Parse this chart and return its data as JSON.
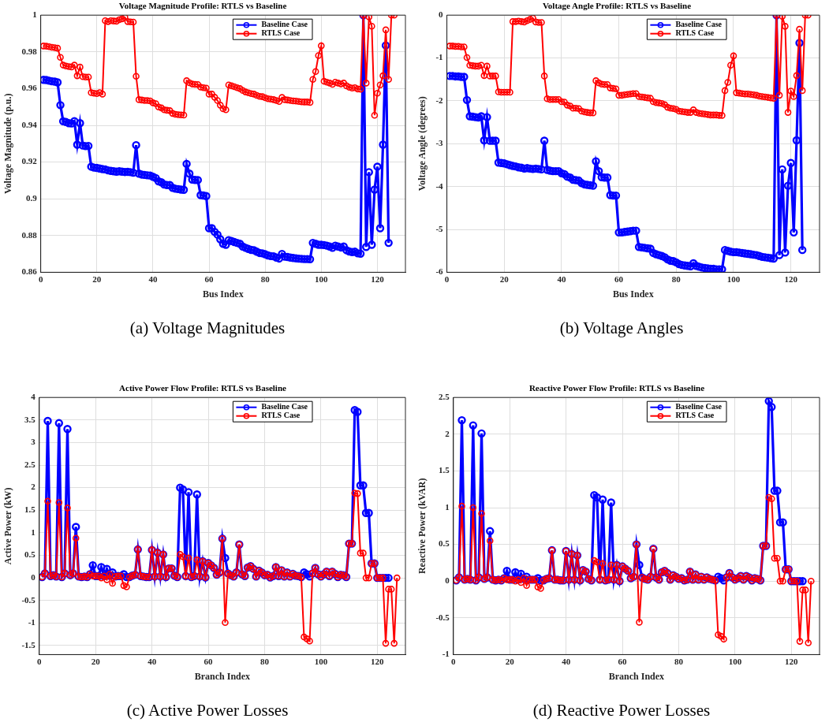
{
  "chart_data": [
    {
      "type": "line",
      "title": "Voltage Magnitude Profile: RTLS vs Baseline",
      "xlabel": "Bus Index",
      "ylabel": "Voltage Magnitude (p.u.)",
      "annotations": [
        "(a) Voltage Magnitudes"
      ],
      "xlim": [
        0,
        130
      ],
      "xticks": [
        0,
        20,
        40,
        60,
        80,
        100,
        120
      ],
      "ylim": [
        0.86,
        1
      ],
      "yticks": [
        0.86,
        0.88,
        0.9,
        0.92,
        0.94,
        0.96,
        0.98,
        1
      ],
      "grid": true,
      "legend": "top right",
      "marker": "circle",
      "x": [
        1,
        2,
        3,
        4,
        5,
        6,
        7,
        8,
        9,
        10,
        11,
        12,
        13,
        14,
        15,
        16,
        17,
        18,
        19,
        20,
        21,
        22,
        23,
        24,
        25,
        26,
        27,
        28,
        29,
        30,
        31,
        32,
        33,
        34,
        35,
        36,
        37,
        38,
        39,
        40,
        41,
        42,
        43,
        44,
        45,
        46,
        47,
        48,
        49,
        50,
        51,
        52,
        53,
        54,
        55,
        56,
        57,
        58,
        59,
        60,
        61,
        62,
        63,
        64,
        65,
        66,
        67,
        68,
        69,
        70,
        71,
        72,
        73,
        74,
        75,
        76,
        77,
        78,
        79,
        80,
        81,
        82,
        83,
        84,
        85,
        86,
        87,
        88,
        89,
        90,
        91,
        92,
        93,
        94,
        95,
        96,
        97,
        98,
        99,
        100,
        101,
        102,
        103,
        104,
        105,
        106,
        107,
        108,
        109,
        110,
        111,
        112,
        113,
        114,
        115,
        116,
        117,
        118,
        119,
        120,
        121,
        122,
        123,
        124,
        125,
        126
      ],
      "series": [
        {
          "name": "Baseline Case",
          "color": "#0000ff",
          "values": [
            0.9648,
            0.9647,
            0.9643,
            0.964,
            0.9638,
            0.9634,
            0.951,
            0.9422,
            0.9418,
            0.9412,
            0.941,
            0.9423,
            0.9295,
            0.9412,
            0.929,
            0.9287,
            0.9288,
            0.9175,
            0.917,
            0.9168,
            0.9165,
            0.9162,
            0.916,
            0.9155,
            0.9152,
            0.915,
            0.9148,
            0.915,
            0.9148,
            0.9146,
            0.9147,
            0.9145,
            0.9142,
            0.9292,
            0.9137,
            0.9132,
            0.913,
            0.9128,
            0.9127,
            0.912,
            0.9113,
            0.9095,
            0.909,
            0.9078,
            0.9075,
            0.9075,
            0.906,
            0.9055,
            0.9053,
            0.905,
            0.9049,
            0.919,
            0.9137,
            0.9105,
            0.9103,
            0.9102,
            0.902,
            0.9018,
            0.9015,
            0.884,
            0.884,
            0.882,
            0.8805,
            0.878,
            0.8755,
            0.875,
            0.8775,
            0.877,
            0.8765,
            0.876,
            0.8755,
            0.874,
            0.8733,
            0.8727,
            0.8722,
            0.872,
            0.8712,
            0.8705,
            0.8703,
            0.8698,
            0.8692,
            0.8688,
            0.8687,
            0.868,
            0.8675,
            0.87,
            0.8685,
            0.8683,
            0.868,
            0.8678,
            0.8676,
            0.8674,
            0.8673,
            0.8672,
            0.8672,
            0.8671,
            0.876,
            0.8755,
            0.875,
            0.875,
            0.8748,
            0.8745,
            0.874,
            0.8733,
            0.8745,
            0.874,
            0.8735,
            0.874,
            0.872,
            0.8713,
            0.871,
            0.8712,
            0.8703,
            0.8701,
            1.0,
            0.8738,
            0.9145,
            0.875,
            0.905,
            0.9175,
            0.884,
            0.9295,
            0.9835,
            0.876,
            null,
            null
          ]
        },
        {
          "name": "RTLS Case",
          "color": "#ff0000",
          "values": [
            0.9832,
            0.9831,
            0.9828,
            0.9825,
            0.9823,
            0.982,
            0.977,
            0.9728,
            0.9723,
            0.972,
            0.9718,
            0.9728,
            0.967,
            0.9717,
            0.9665,
            0.9663,
            0.9663,
            0.9578,
            0.9575,
            0.9573,
            0.9578,
            0.957,
            0.997,
            0.9965,
            0.997,
            0.9968,
            0.9967,
            0.9975,
            0.998,
            0.9988,
            0.9965,
            0.9963,
            0.9962,
            0.9667,
            0.954,
            0.9538,
            0.9535,
            0.9535,
            0.9533,
            0.9523,
            0.9518,
            0.95,
            0.9495,
            0.9485,
            0.9482,
            0.948,
            0.9465,
            0.946,
            0.9458,
            0.9457,
            0.9456,
            0.9643,
            0.9632,
            0.9625,
            0.9623,
            0.9622,
            0.9608,
            0.9605,
            0.9603,
            0.957,
            0.957,
            0.9553,
            0.9535,
            0.951,
            0.949,
            0.9485,
            0.962,
            0.9615,
            0.961,
            0.9605,
            0.96,
            0.959,
            0.9582,
            0.9577,
            0.9573,
            0.957,
            0.9563,
            0.9558,
            0.9556,
            0.955,
            0.9545,
            0.9543,
            0.954,
            0.9535,
            0.953,
            0.9552,
            0.954,
            0.9538,
            0.9535,
            0.9533,
            0.9532,
            0.953,
            0.9528,
            0.9527,
            0.9527,
            0.9525,
            0.965,
            0.9693,
            0.978,
            0.9833,
            0.964,
            0.9635,
            0.963,
            0.9623,
            0.9635,
            0.963,
            0.9625,
            0.963,
            0.9615,
            0.9607,
            0.9603,
            0.9605,
            0.9598,
            0.9597,
            1.0,
            0.963,
            0.999,
            0.994,
            0.9455,
            0.9575,
            0.962,
            0.967,
            0.992,
            0.965,
            1.0,
            1.0
          ]
        }
      ]
    },
    {
      "type": "line",
      "title": "Voltage Angle Profile: RTLS vs Baseline",
      "xlabel": "Bus Index",
      "ylabel": "Voltage Angle (degrees)",
      "annotations": [
        "(b) Voltage Angles"
      ],
      "xlim": [
        0,
        130
      ],
      "xticks": [
        0,
        20,
        40,
        60,
        80,
        100,
        120
      ],
      "ylim": [
        -6,
        0
      ],
      "yticks": [
        -6,
        -5,
        -4,
        -3,
        -2,
        -1,
        0
      ],
      "grid": true,
      "legend": "top right",
      "marker": "circle",
      "x": [
        1,
        2,
        3,
        4,
        5,
        6,
        7,
        8,
        9,
        10,
        11,
        12,
        13,
        14,
        15,
        16,
        17,
        18,
        19,
        20,
        21,
        22,
        23,
        24,
        25,
        26,
        27,
        28,
        29,
        30,
        31,
        32,
        33,
        34,
        35,
        36,
        37,
        38,
        39,
        40,
        41,
        42,
        43,
        44,
        45,
        46,
        47,
        48,
        49,
        50,
        51,
        52,
        53,
        54,
        55,
        56,
        57,
        58,
        59,
        60,
        61,
        62,
        63,
        64,
        65,
        66,
        67,
        68,
        69,
        70,
        71,
        72,
        73,
        74,
        75,
        76,
        77,
        78,
        79,
        80,
        81,
        82,
        83,
        84,
        85,
        86,
        87,
        88,
        89,
        90,
        91,
        92,
        93,
        94,
        95,
        96,
        97,
        98,
        99,
        100,
        101,
        102,
        103,
        104,
        105,
        106,
        107,
        108,
        109,
        110,
        111,
        112,
        113,
        114,
        115,
        116,
        117,
        118,
        119,
        120,
        121,
        122,
        123,
        124,
        125,
        126
      ],
      "series": [
        {
          "name": "Baseline Case",
          "color": "#0000ff",
          "values": [
            -1.42,
            -1.42,
            -1.43,
            -1.43,
            -1.44,
            -1.44,
            -1.98,
            -2.36,
            -2.37,
            -2.38,
            -2.39,
            -2.36,
            -2.92,
            -2.38,
            -2.93,
            -2.93,
            -2.93,
            -3.44,
            -3.45,
            -3.46,
            -3.48,
            -3.5,
            -3.52,
            -3.53,
            -3.55,
            -3.56,
            -3.58,
            -3.57,
            -3.58,
            -3.59,
            -3.58,
            -3.59,
            -3.6,
            -2.93,
            -3.61,
            -3.63,
            -3.64,
            -3.64,
            -3.64,
            -3.69,
            -3.71,
            -3.77,
            -3.79,
            -3.84,
            -3.85,
            -3.86,
            -3.92,
            -3.95,
            -3.96,
            -3.97,
            -3.98,
            -3.41,
            -3.64,
            -3.78,
            -3.79,
            -3.79,
            -4.2,
            -4.21,
            -4.21,
            -5.07,
            -5.07,
            -5.06,
            -5.05,
            -5.04,
            -5.03,
            -5.03,
            -5.41,
            -5.42,
            -5.43,
            -5.44,
            -5.45,
            -5.55,
            -5.58,
            -5.6,
            -5.62,
            -5.65,
            -5.7,
            -5.73,
            -5.74,
            -5.77,
            -5.81,
            -5.83,
            -5.84,
            -5.85,
            -5.86,
            -5.79,
            -5.85,
            -5.87,
            -5.89,
            -5.9,
            -5.91,
            -5.92,
            -5.92,
            -5.93,
            -5.93,
            -5.93,
            -5.48,
            -5.5,
            -5.52,
            -5.53,
            -5.53,
            -5.54,
            -5.55,
            -5.56,
            -5.57,
            -5.58,
            -5.59,
            -5.6,
            -5.62,
            -5.64,
            -5.65,
            -5.66,
            -5.67,
            -5.68,
            0,
            -5.6,
            -3.6,
            -5.54,
            -3.98,
            -3.45,
            -5.07,
            -2.92,
            -0.65,
            -5.48,
            null,
            null
          ]
        },
        {
          "name": "RTLS Case",
          "color": "#ff0000",
          "values": [
            -0.72,
            -0.72,
            -0.73,
            -0.73,
            -0.74,
            -0.74,
            -0.99,
            -1.17,
            -1.18,
            -1.19,
            -1.19,
            -1.17,
            -1.41,
            -1.19,
            -1.42,
            -1.42,
            -1.42,
            -1.79,
            -1.8,
            -1.8,
            -1.8,
            -1.8,
            -0.15,
            -0.15,
            -0.14,
            -0.15,
            -0.16,
            -0.13,
            -0.1,
            -0.07,
            -0.16,
            -0.17,
            -0.17,
            -1.42,
            -1.95,
            -1.97,
            -1.97,
            -1.97,
            -1.97,
            -2.02,
            -2.03,
            -2.1,
            -2.12,
            -2.17,
            -2.17,
            -2.18,
            -2.24,
            -2.26,
            -2.27,
            -2.28,
            -2.28,
            -1.53,
            -1.58,
            -1.61,
            -1.62,
            -1.62,
            -1.7,
            -1.71,
            -1.72,
            -1.87,
            -1.87,
            -1.86,
            -1.85,
            -1.84,
            -1.83,
            -1.83,
            -1.9,
            -1.91,
            -1.92,
            -1.93,
            -1.94,
            -2.02,
            -2.04,
            -2.05,
            -2.06,
            -2.09,
            -2.15,
            -2.17,
            -2.18,
            -2.2,
            -2.24,
            -2.25,
            -2.26,
            -2.27,
            -2.27,
            -2.21,
            -2.27,
            -2.29,
            -2.3,
            -2.31,
            -2.32,
            -2.33,
            -2.33,
            -2.33,
            -2.34,
            -2.34,
            -1.76,
            -1.57,
            -1.17,
            -0.95,
            -1.81,
            -1.82,
            -1.83,
            -1.84,
            -1.84,
            -1.85,
            -1.86,
            -1.87,
            -1.89,
            -1.9,
            -1.91,
            -1.92,
            -1.93,
            -1.94,
            0,
            -1.87,
            -0.03,
            -0.26,
            -2.27,
            -1.77,
            -1.9,
            -1.41,
            -0.33,
            -1.76,
            0,
            0
          ]
        }
      ]
    },
    {
      "type": "line",
      "title": "Active Power Flow Profile: RTLS vs Baseline",
      "xlabel": "Branch Index",
      "ylabel": "Active Power (kW)",
      "annotations": [
        "(c) Active Power Losses"
      ],
      "xlim": [
        0,
        130
      ],
      "xticks": [
        0,
        20,
        40,
        60,
        80,
        100,
        120
      ],
      "ylim": [
        -1.7,
        4
      ],
      "yticks": [
        -1.5,
        -1,
        -0.5,
        0,
        0.5,
        1,
        1.5,
        2,
        2.5,
        3,
        3.5,
        4
      ],
      "grid": true,
      "legend": "top right",
      "marker": "circle",
      "x": [
        1,
        2,
        3,
        4,
        5,
        6,
        7,
        8,
        9,
        10,
        11,
        12,
        13,
        14,
        15,
        16,
        17,
        18,
        19,
        20,
        21,
        22,
        23,
        24,
        25,
        26,
        27,
        28,
        29,
        30,
        31,
        32,
        33,
        34,
        35,
        36,
        37,
        38,
        39,
        40,
        41,
        42,
        43,
        44,
        45,
        46,
        47,
        48,
        49,
        50,
        51,
        52,
        53,
        54,
        55,
        56,
        57,
        58,
        59,
        60,
        61,
        62,
        63,
        64,
        65,
        66,
        67,
        68,
        69,
        70,
        71,
        72,
        73,
        74,
        75,
        76,
        77,
        78,
        79,
        80,
        81,
        82,
        83,
        84,
        85,
        86,
        87,
        88,
        89,
        90,
        91,
        92,
        93,
        94,
        95,
        96,
        97,
        98,
        99,
        100,
        101,
        102,
        103,
        104,
        105,
        106,
        107,
        108,
        109,
        110,
        111,
        112,
        113,
        114,
        115,
        116,
        117,
        118,
        119,
        120,
        121,
        122,
        123,
        124,
        125,
        126,
        127
      ],
      "series": [
        {
          "name": "Baseline Case",
          "color": "#0000ff",
          "values": [
            0.02,
            0.1,
            3.48,
            0.04,
            0.06,
            0.03,
            3.43,
            0.02,
            0.1,
            3.3,
            0.06,
            0.1,
            1.13,
            0.03,
            0.02,
            0.03,
            0.02,
            0.08,
            0.28,
            0.04,
            0.04,
            0.24,
            0.04,
            0.2,
            0.05,
            0.12,
            0.03,
            0.04,
            0.04,
            0.08,
            0.02,
            0.02,
            0.05,
            0.07,
            0.63,
            0.04,
            0.03,
            0.02,
            0.02,
            0.62,
            0.03,
            0.56,
            0.03,
            0.52,
            0.02,
            0.21,
            0.21,
            0.05,
            0.02,
            2.0,
            1.96,
            0.04,
            1.9,
            0.02,
            0.04,
            1.85,
            0.03,
            0.37,
            0.01,
            0.33,
            0.28,
            0.22,
            0.07,
            0.12,
            0.87,
            0.44,
            0.1,
            0.06,
            0.03,
            0.12,
            0.74,
            0.08,
            0.04,
            0.23,
            0.26,
            0.2,
            0.03,
            0.16,
            0.12,
            0.06,
            0.07,
            0.01,
            0.04,
            0.24,
            0.04,
            0.17,
            0.03,
            0.12,
            0.03,
            0.09,
            0.05,
            0.04,
            0.02,
            0.12,
            0.08,
            0.03,
            0.1,
            0.22,
            0.08,
            0.03,
            0.08,
            0.14,
            0.04,
            0.14,
            0.09,
            0.02,
            0.07,
            0.06,
            0.02,
            0.76,
            0.76,
            3.72,
            3.68,
            2.05,
            2.05,
            1.44,
            1.44,
            0.32,
            0.32,
            0,
            0,
            0,
            0,
            0,
            null,
            null,
            null
          ]
        },
        {
          "name": "RTLS Case",
          "color": "#ff0000",
          "values": [
            0.02,
            0.1,
            1.7,
            0.04,
            0.06,
            0.03,
            1.67,
            0.02,
            0.1,
            1.55,
            0.06,
            0.1,
            0.88,
            0.03,
            0.02,
            0.03,
            0.02,
            0.08,
            0.04,
            0.04,
            0.04,
            0,
            0.04,
            -0.04,
            0.08,
            -0.12,
            0.03,
            0.04,
            0.04,
            -0.17,
            -0.2,
            0.02,
            0.05,
            0.07,
            0.63,
            0.04,
            0.03,
            0.02,
            0.02,
            0.62,
            0.03,
            0.56,
            0.03,
            0.52,
            0.02,
            0.21,
            0.21,
            0.05,
            0.02,
            0.52,
            0.47,
            0.04,
            0.44,
            0.02,
            0.04,
            0.4,
            0.03,
            0.37,
            0.01,
            0.33,
            0.28,
            0.22,
            0.07,
            0.12,
            0.87,
            -0.99,
            0.1,
            0.06,
            0.03,
            0.12,
            0.74,
            0.08,
            0.04,
            0.23,
            0.26,
            0.2,
            0.03,
            0.16,
            0.12,
            0.06,
            0.07,
            0.01,
            0.04,
            0.24,
            0.04,
            0.17,
            0.03,
            0.12,
            0.03,
            0.09,
            0.05,
            0.04,
            0.02,
            -1.31,
            -1.35,
            -1.4,
            0.1,
            0.22,
            0.08,
            0.03,
            0.08,
            0.14,
            0.04,
            0.14,
            0.09,
            0.02,
            0.07,
            0.06,
            0.02,
            0.76,
            0.76,
            1.88,
            1.87,
            0.55,
            0.55,
            0,
            0,
            0.32,
            0.32,
            0,
            0,
            0,
            -1.45,
            -0.25,
            -0.25,
            -1.45,
            0
          ]
        }
      ]
    },
    {
      "type": "line",
      "title": "Reactive Power Flow Profile: RTLS vs Baseline",
      "xlabel": "Branch Index",
      "ylabel": "Reactive Power (kVAR)",
      "annotations": [
        "(d) Reactive Power Losses"
      ],
      "xlim": [
        0,
        130
      ],
      "xticks": [
        0,
        20,
        40,
        60,
        80,
        100,
        120
      ],
      "ylim": [
        -1,
        2.5
      ],
      "yticks": [
        -1,
        -0.5,
        0,
        0.5,
        1,
        1.5,
        2,
        2.5
      ],
      "grid": true,
      "legend": "top right",
      "marker": "circle",
      "x": [
        1,
        2,
        3,
        4,
        5,
        6,
        7,
        8,
        9,
        10,
        11,
        12,
        13,
        14,
        15,
        16,
        17,
        18,
        19,
        20,
        21,
        22,
        23,
        24,
        25,
        26,
        27,
        28,
        29,
        30,
        31,
        32,
        33,
        34,
        35,
        36,
        37,
        38,
        39,
        40,
        41,
        42,
        43,
        44,
        45,
        46,
        47,
        48,
        49,
        50,
        51,
        52,
        53,
        54,
        55,
        56,
        57,
        58,
        59,
        60,
        61,
        62,
        63,
        64,
        65,
        66,
        67,
        68,
        69,
        70,
        71,
        72,
        73,
        74,
        75,
        76,
        77,
        78,
        79,
        80,
        81,
        82,
        83,
        84,
        85,
        86,
        87,
        88,
        89,
        90,
        91,
        92,
        93,
        94,
        95,
        96,
        97,
        98,
        99,
        100,
        101,
        102,
        103,
        104,
        105,
        106,
        107,
        108,
        109,
        110,
        111,
        112,
        113,
        114,
        115,
        116,
        117,
        118,
        119,
        120,
        121,
        122,
        123,
        124,
        125,
        126,
        127
      ],
      "series": [
        {
          "name": "Baseline Case",
          "color": "#0000ff",
          "values": [
            0.01,
            0.05,
            2.19,
            0.02,
            0.03,
            0.02,
            2.12,
            0.01,
            0.05,
            2.01,
            0.03,
            0.05,
            0.68,
            0.02,
            0.01,
            0.02,
            0.01,
            0.04,
            0.14,
            0.02,
            0.02,
            0.12,
            0.02,
            0.1,
            0.03,
            0.06,
            0.02,
            0.02,
            0.02,
            0.04,
            0.01,
            0.01,
            0.03,
            0.04,
            0.42,
            0.02,
            0.02,
            0.01,
            0.01,
            0.41,
            0.02,
            0.37,
            0.02,
            0.35,
            0.01,
            0.15,
            0.13,
            0.03,
            0.01,
            1.17,
            1.14,
            0.02,
            1.11,
            0.01,
            0.02,
            1.07,
            0.02,
            0.22,
            0,
            0.2,
            0.17,
            0.14,
            0.04,
            0.06,
            0.5,
            0.22,
            0.05,
            0.03,
            0.02,
            0.06,
            0.44,
            0.05,
            0.02,
            0.12,
            0.14,
            0.11,
            0.02,
            0.08,
            0.06,
            0.03,
            0.04,
            0.01,
            0.02,
            0.13,
            0.02,
            0.09,
            0.02,
            0.06,
            0.02,
            0.05,
            0.03,
            0.02,
            0.01,
            0.06,
            0.04,
            0.01,
            0.05,
            0.11,
            0.05,
            0.02,
            0.04,
            0.07,
            0.02,
            0.07,
            0.05,
            0.01,
            0.04,
            0.03,
            0.01,
            0.48,
            0.48,
            2.45,
            2.37,
            1.23,
            1.23,
            0.8,
            0.8,
            0.16,
            0.16,
            0,
            0,
            0,
            0,
            0,
            null,
            null,
            null
          ]
        },
        {
          "name": "RTLS Case",
          "color": "#ff0000",
          "values": [
            0.01,
            0.05,
            1.02,
            0.02,
            0.03,
            0.02,
            1,
            0.01,
            0.05,
            0.92,
            0.03,
            0.05,
            0.55,
            0.02,
            0.01,
            0.02,
            0.01,
            0.04,
            0.02,
            0.02,
            0.02,
            0,
            0.02,
            -0.02,
            0.04,
            -0.06,
            0.02,
            0.02,
            0.02,
            -0.08,
            -0.1,
            0.01,
            0.03,
            0.04,
            0.42,
            0.02,
            0.02,
            0.01,
            0.01,
            0.41,
            0.02,
            0.37,
            0.02,
            0.35,
            0.01,
            0.15,
            0.13,
            0.03,
            0.01,
            0.28,
            0.26,
            0.02,
            0.24,
            0.01,
            0.02,
            0.22,
            0.02,
            0.22,
            0,
            0.2,
            0.17,
            0.14,
            0.04,
            0.06,
            0.5,
            -0.56,
            0.05,
            0.03,
            0.02,
            0.06,
            0.44,
            0.05,
            0.02,
            0.12,
            0.14,
            0.11,
            0.02,
            0.08,
            0.06,
            0.03,
            0.04,
            0.01,
            0.02,
            0.13,
            0.02,
            0.09,
            0.02,
            0.06,
            0.02,
            0.05,
            0.03,
            0.02,
            0.01,
            -0.73,
            -0.75,
            -0.79,
            0.05,
            0.11,
            0.05,
            0.02,
            0.04,
            0.07,
            0.02,
            0.07,
            0.05,
            0.01,
            0.04,
            0.03,
            0.01,
            0.48,
            0.48,
            1.14,
            1.12,
            0.31,
            0.31,
            0,
            0,
            0.16,
            0.16,
            0,
            0,
            0,
            -0.82,
            -0.12,
            -0.12,
            -0.84,
            0
          ]
        }
      ]
    }
  ]
}
